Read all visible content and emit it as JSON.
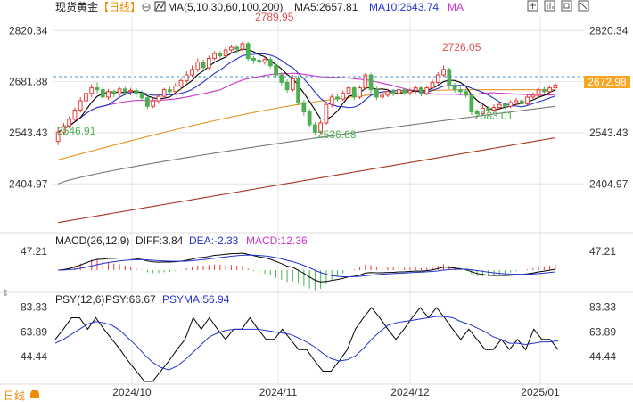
{
  "header": {
    "symbol": "现货黄金",
    "period": "【日线】",
    "zoom_icon": "zoom-circle-icon",
    "ma_label": "MA(5,10,30,60,100,200)",
    "ma5_label": "MA5:2657.81",
    "ma10_label": "MA10:2643.74",
    "ma_link": "MA",
    "tool_icons": [
      "compare-icon",
      "indicator-icon",
      "restore-icon",
      "fullscreen-icon"
    ]
  },
  "colors": {
    "up": "#e53935",
    "down": "#4caf50",
    "ma5": "#000000",
    "ma10": "#2233cc",
    "ma30": "#cc33cc",
    "ma60": "#e69522",
    "ma100": "#777777",
    "ma200": "#aa3322",
    "last_price_bg": "#f5a623",
    "grid": "#e4e4e4",
    "label_pink": "#cc3399"
  },
  "chart_data": [
    {
      "type": "candlestick",
      "yticks": [
        "2820.34",
        "2681.88",
        "2543.43",
        "2404.97"
      ],
      "ylim": [
        2280,
        2850
      ],
      "x_labels": [
        "2024/10",
        "2024/11",
        "2024/12",
        "2025/01"
      ],
      "last_price": "2672.98",
      "annotations": [
        "2789.95",
        "2726.05",
        "2546.91",
        "2536.68",
        "2583.01"
      ],
      "candles": [
        [
          2520,
          2545,
          2510,
          2560
        ],
        [
          2545,
          2562,
          2538,
          2570
        ],
        [
          2562,
          2580,
          2555,
          2588
        ],
        [
          2580,
          2605,
          2575,
          2612
        ],
        [
          2605,
          2630,
          2598,
          2640
        ],
        [
          2630,
          2650,
          2622,
          2658
        ],
        [
          2650,
          2665,
          2640,
          2675
        ],
        [
          2665,
          2660,
          2650,
          2680
        ],
        [
          2660,
          2640,
          2632,
          2670
        ],
        [
          2640,
          2655,
          2632,
          2662
        ],
        [
          2655,
          2648,
          2640,
          2660
        ],
        [
          2648,
          2662,
          2642,
          2668
        ],
        [
          2662,
          2655,
          2648,
          2668
        ],
        [
          2655,
          2658,
          2645,
          2665
        ],
        [
          2658,
          2650,
          2640,
          2665
        ],
        [
          2650,
          2638,
          2630,
          2658
        ],
        [
          2638,
          2615,
          2608,
          2642
        ],
        [
          2615,
          2630,
          2610,
          2638
        ],
        [
          2630,
          2642,
          2622,
          2650
        ],
        [
          2642,
          2660,
          2636,
          2665
        ],
        [
          2660,
          2655,
          2648,
          2668
        ],
        [
          2655,
          2670,
          2650,
          2678
        ],
        [
          2670,
          2685,
          2662,
          2690
        ],
        [
          2685,
          2700,
          2678,
          2710
        ],
        [
          2700,
          2715,
          2695,
          2725
        ],
        [
          2715,
          2735,
          2708,
          2745
        ],
        [
          2735,
          2720,
          2712,
          2742
        ],
        [
          2720,
          2745,
          2715,
          2752
        ],
        [
          2745,
          2758,
          2740,
          2765
        ],
        [
          2758,
          2752,
          2745,
          2765
        ],
        [
          2752,
          2768,
          2748,
          2775
        ],
        [
          2768,
          2775,
          2760,
          2782
        ],
        [
          2775,
          2770,
          2760,
          2780
        ],
        [
          2770,
          2785,
          2765,
          2789.95
        ],
        [
          2785,
          2745,
          2738,
          2790
        ],
        [
          2745,
          2740,
          2730,
          2752
        ],
        [
          2740,
          2735,
          2728,
          2748
        ],
        [
          2735,
          2742,
          2728,
          2750
        ],
        [
          2742,
          2725,
          2718,
          2748
        ],
        [
          2725,
          2700,
          2692,
          2730
        ],
        [
          2700,
          2680,
          2672,
          2708
        ],
        [
          2680,
          2660,
          2652,
          2688
        ],
        [
          2660,
          2690,
          2655,
          2700
        ],
        [
          2690,
          2625,
          2618,
          2698
        ],
        [
          2625,
          2600,
          2590,
          2632
        ],
        [
          2600,
          2565,
          2558,
          2608
        ],
        [
          2565,
          2545,
          2536.68,
          2572
        ],
        [
          2545,
          2570,
          2540,
          2578
        ],
        [
          2570,
          2620,
          2565,
          2628
        ],
        [
          2620,
          2640,
          2612,
          2648
        ],
        [
          2640,
          2635,
          2628,
          2648
        ],
        [
          2635,
          2650,
          2630,
          2658
        ],
        [
          2650,
          2665,
          2645,
          2672
        ],
        [
          2665,
          2640,
          2632,
          2670
        ],
        [
          2640,
          2665,
          2635,
          2672
        ],
        [
          2665,
          2700,
          2660,
          2705
        ],
        [
          2700,
          2660,
          2650,
          2706
        ],
        [
          2660,
          2640,
          2632,
          2668
        ],
        [
          2640,
          2645,
          2635,
          2655
        ],
        [
          2645,
          2655,
          2640,
          2662
        ],
        [
          2655,
          2650,
          2642,
          2662
        ],
        [
          2650,
          2660,
          2645,
          2668
        ],
        [
          2660,
          2652,
          2645,
          2665
        ],
        [
          2652,
          2658,
          2645,
          2665
        ],
        [
          2658,
          2665,
          2650,
          2672
        ],
        [
          2665,
          2650,
          2642,
          2670
        ],
        [
          2650,
          2665,
          2645,
          2672
        ],
        [
          2665,
          2680,
          2660,
          2688
        ],
        [
          2680,
          2700,
          2675,
          2708
        ],
        [
          2700,
          2715,
          2695,
          2726.05
        ],
        [
          2715,
          2670,
          2662,
          2720
        ],
        [
          2670,
          2660,
          2652,
          2678
        ],
        [
          2660,
          2655,
          2648,
          2668
        ],
        [
          2655,
          2645,
          2638,
          2662
        ],
        [
          2645,
          2600,
          2592,
          2650
        ],
        [
          2600,
          2595,
          2583.01,
          2608
        ],
        [
          2595,
          2610,
          2590,
          2618
        ],
        [
          2610,
          2605,
          2598,
          2615
        ],
        [
          2605,
          2612,
          2600,
          2620
        ],
        [
          2612,
          2620,
          2606,
          2626
        ],
        [
          2620,
          2615,
          2608,
          2626
        ],
        [
          2615,
          2625,
          2610,
          2632
        ],
        [
          2625,
          2630,
          2620,
          2638
        ],
        [
          2630,
          2622,
          2616,
          2636
        ],
        [
          2622,
          2640,
          2618,
          2646
        ],
        [
          2640,
          2645,
          2635,
          2652
        ],
        [
          2645,
          2660,
          2640,
          2665
        ],
        [
          2660,
          2655,
          2648,
          2668
        ],
        [
          2655,
          2665,
          2650,
          2672
        ],
        [
          2665,
          2672.98,
          2658,
          2678
        ]
      ]
    },
    {
      "type": "macd",
      "title": "MACD(26,12,9)",
      "diff_label": "DIFF:3.84",
      "dea_label": "DEA:-2.33",
      "macd_label": "MACD:12.36",
      "ytick": "47.21"
    },
    {
      "type": "line",
      "title": "PSY(12,6)",
      "psy_label": "PSY:66.67",
      "psyma_label": "PSYMA:56.94",
      "yticks": [
        "83.33",
        "63.89",
        "44.44"
      ],
      "ylim": [
        25,
        90
      ],
      "series": [
        {
          "name": "PSY",
          "values": [
            58,
            66,
            75,
            75,
            66,
            75,
            66,
            58,
            50,
            41,
            33,
            25,
            25,
            33,
            41,
            50,
            58,
            75,
            66,
            75,
            66,
            58,
            66,
            66,
            75,
            66,
            58,
            58,
            66,
            58,
            50,
            50,
            41,
            33,
            33,
            41,
            50,
            66,
            75,
            83,
            75,
            66,
            58,
            66,
            75,
            83,
            75,
            83,
            75,
            66,
            58,
            66,
            58,
            50,
            50,
            58,
            50,
            58,
            50,
            66,
            58,
            58,
            50
          ]
        },
        {
          "name": "PSYMA",
          "values": [
            55,
            58,
            62,
            66,
            70,
            72,
            71,
            69,
            65,
            59,
            53,
            46,
            40,
            36,
            34,
            37,
            42,
            48,
            54,
            60,
            63,
            65,
            66,
            66,
            66,
            66,
            65,
            64,
            63,
            62,
            59,
            56,
            52,
            47,
            43,
            41,
            42,
            45,
            51,
            58,
            64,
            69,
            71,
            72,
            73,
            74,
            75,
            76,
            76,
            75,
            72,
            70,
            67,
            64,
            60,
            58,
            55,
            55,
            54,
            55,
            56,
            56,
            57
          ]
        }
      ]
    }
  ],
  "bottom": {
    "dates": [
      "2024/10",
      "2024/11",
      "2024/12",
      "2025/01"
    ],
    "logo_text": "日线",
    "logo_icon": "bell-icon"
  }
}
